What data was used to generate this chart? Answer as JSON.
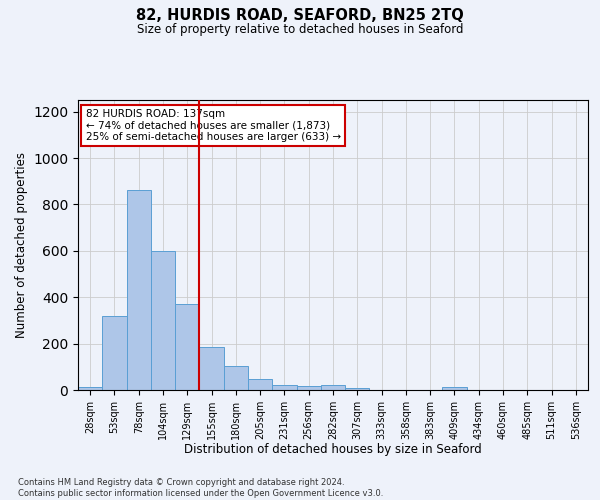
{
  "title": "82, HURDIS ROAD, SEAFORD, BN25 2TQ",
  "subtitle": "Size of property relative to detached houses in Seaford",
  "xlabel": "Distribution of detached houses by size in Seaford",
  "ylabel": "Number of detached properties",
  "categories": [
    "28sqm",
    "53sqm",
    "78sqm",
    "104sqm",
    "129sqm",
    "155sqm",
    "180sqm",
    "205sqm",
    "231sqm",
    "256sqm",
    "282sqm",
    "307sqm",
    "333sqm",
    "358sqm",
    "383sqm",
    "409sqm",
    "434sqm",
    "460sqm",
    "485sqm",
    "511sqm",
    "536sqm"
  ],
  "values": [
    15,
    320,
    860,
    600,
    370,
    185,
    105,
    47,
    22,
    18,
    20,
    10,
    0,
    0,
    0,
    12,
    0,
    0,
    0,
    0,
    0
  ],
  "bar_color": "#aec6e8",
  "bar_edgecolor": "#5a9fd4",
  "grid_color": "#cccccc",
  "vline_x": 4.5,
  "vline_color": "#cc0000",
  "annotation_text": "82 HURDIS ROAD: 137sqm\n← 74% of detached houses are smaller (1,873)\n25% of semi-detached houses are larger (633) →",
  "annotation_box_color": "#ffffff",
  "annotation_box_edgecolor": "#cc0000",
  "ylim": [
    0,
    1250
  ],
  "yticks": [
    0,
    200,
    400,
    600,
    800,
    1000,
    1200
  ],
  "footer_text": "Contains HM Land Registry data © Crown copyright and database right 2024.\nContains public sector information licensed under the Open Government Licence v3.0.",
  "bg_color": "#eef2fa"
}
